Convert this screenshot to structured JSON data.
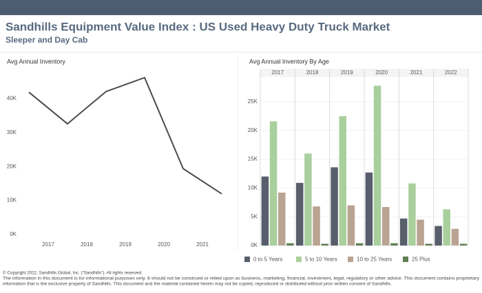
{
  "header": {
    "title": "Sandhills Equipment Value Index : US Used Heavy Duty Truck Market",
    "subtitle": "Sleeper and Day Cab"
  },
  "chart_data": [
    {
      "type": "line",
      "title": "Avg Annual Inventory",
      "color": "#4a4a4a",
      "x": [
        2016.5,
        2017.5,
        2018.5,
        2019.5,
        2020.5,
        2021.5
      ],
      "values": [
        42900,
        33600,
        43100,
        47200,
        20400,
        13000
      ],
      "xlim": [
        2016.3,
        2021.8
      ],
      "xticks": [
        2017,
        2018,
        2019,
        2020,
        2021
      ],
      "ylim": [
        0,
        50000
      ],
      "yticks": [
        {
          "value": 0,
          "label": "0K"
        },
        {
          "value": 10000,
          "label": "10K"
        },
        {
          "value": 20000,
          "label": "20K"
        },
        {
          "value": 30000,
          "label": "30K"
        },
        {
          "value": 40000,
          "label": "40K"
        }
      ]
    },
    {
      "type": "bar",
      "title": "Avg Annual Inventory By Age",
      "categories": [
        "2017",
        "2018",
        "2019",
        "2020",
        "2021",
        "2022"
      ],
      "series": [
        {
          "name": "0 to 5 Years",
          "color": "#585e6b",
          "values": [
            12000,
            10900,
            13600,
            12700,
            4700,
            3400
          ]
        },
        {
          "name": "5 to 10 Years",
          "color": "#a9cf9d",
          "values": [
            21600,
            16000,
            22500,
            27800,
            10800,
            6300
          ]
        },
        {
          "name": "10 to 25 Years",
          "color": "#b9a393",
          "values": [
            9200,
            6800,
            7000,
            6700,
            4500,
            2900
          ]
        },
        {
          "name": "25 Plus",
          "color": "#5f7f53",
          "values": [
            400,
            300,
            400,
            400,
            300,
            300
          ]
        }
      ],
      "ylim": [
        0,
        29300
      ],
      "yticks": [
        {
          "value": 0,
          "label": "0K"
        },
        {
          "value": 5000,
          "label": "5K"
        },
        {
          "value": 10000,
          "label": "10K"
        },
        {
          "value": 15000,
          "label": "15K"
        },
        {
          "value": 20000,
          "label": "20K"
        },
        {
          "value": 25000,
          "label": "25K"
        }
      ],
      "legend": "bottom"
    }
  ],
  "footer": [
    "© Copyright 2022, Sandhills Global, Inc. (“Sandhills”). All rights reserved.",
    "The information in this document is for informational purposes only.  It should not be construed or relied upon as business, marketing, financial, investment, legal, regulatory or other advice. This document contains proprietary",
    "information that is the exclusive property of Sandhills. This document and the material contained herein may not be copied, reproduced or distributed without prior written consent of Sandhills."
  ]
}
